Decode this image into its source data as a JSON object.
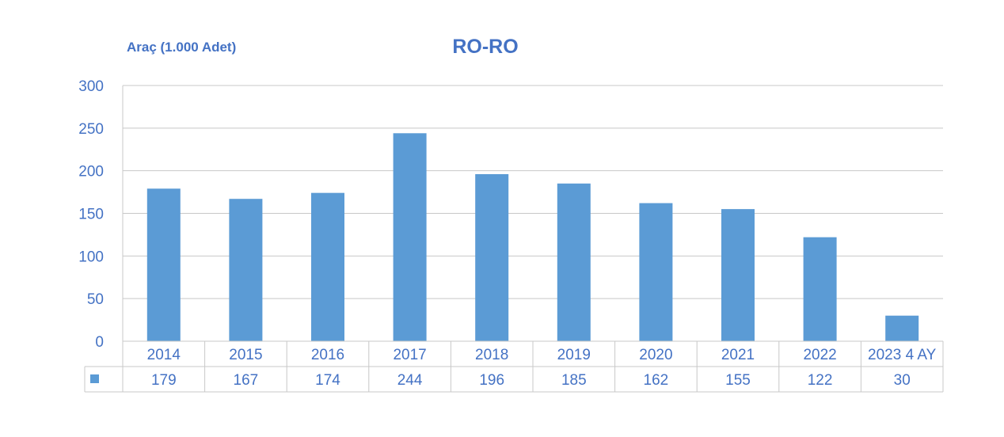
{
  "chart_data": {
    "type": "bar",
    "title": "RO-RO",
    "ylabel": "Araç (1.000 Adet)",
    "categories": [
      "2014",
      "2015",
      "2016",
      "2017",
      "2018",
      "2019",
      "2020",
      "2021",
      "2022",
      "2023 4 AY"
    ],
    "series": [
      {
        "values": [
          179,
          167,
          174,
          244,
          196,
          185,
          162,
          155,
          122,
          30
        ],
        "color": "#5b9bd5"
      }
    ],
    "ylim": [
      0,
      300
    ],
    "yticks": [
      0,
      50,
      100,
      150,
      200,
      250,
      300
    ],
    "grid": true,
    "data_table": true,
    "colors": {
      "bar": "#5b9bd5",
      "text": "#4472c4",
      "grid": "#c8c8c8"
    }
  }
}
